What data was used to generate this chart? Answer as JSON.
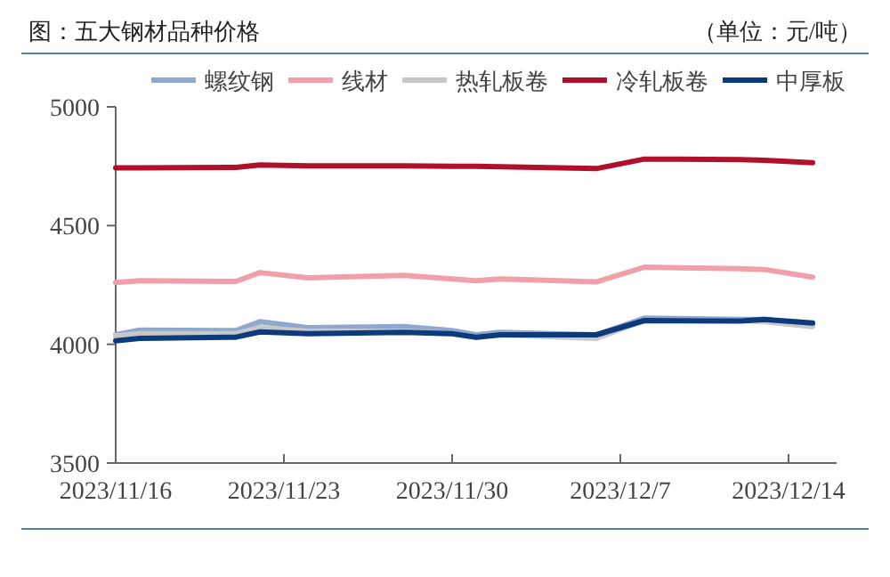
{
  "chart_data": {
    "type": "line",
    "title": "图：五大钢材品种价格",
    "subtitle": "（单位：元/吨）",
    "x": [
      "2023-11-16",
      "2023-11-17",
      "2023-11-21",
      "2023-11-22",
      "2023-11-24",
      "2023-11-28",
      "2023-11-30",
      "2023-12-01",
      "2023-12-02",
      "2023-12-06",
      "2023-12-08",
      "2023-12-12",
      "2023-12-13",
      "2023-12-15"
    ],
    "series": [
      {
        "name": "螺纹钢",
        "color": "#8fa8d0",
        "values": [
          4040,
          4060,
          4058,
          4095,
          4070,
          4075,
          4058,
          4040,
          4050,
          4040,
          4110,
          4105,
          4105,
          4080
        ]
      },
      {
        "name": "线材",
        "color": "#f0a0a8",
        "values": [
          4260,
          4268,
          4265,
          4302,
          4280,
          4290,
          4275,
          4268,
          4275,
          4263,
          4325,
          4318,
          4315,
          4283
        ]
      },
      {
        "name": "热轧板卷",
        "color": "#c8c8c8",
        "values": [
          4035,
          4045,
          4045,
          4070,
          4055,
          4055,
          4045,
          4030,
          4040,
          4025,
          4100,
          4100,
          4095,
          4075
        ]
      },
      {
        "name": "冷轧板卷",
        "color": "#b0102a",
        "values": [
          4743,
          4743,
          4745,
          4755,
          4752,
          4752,
          4750,
          4750,
          4748,
          4740,
          4780,
          4778,
          4775,
          4765
        ]
      },
      {
        "name": "中厚板",
        "color": "#0c3a7c",
        "values": [
          4015,
          4025,
          4030,
          4052,
          4045,
          4050,
          4045,
          4030,
          4040,
          4040,
          4100,
          4098,
          4105,
          4090
        ]
      }
    ],
    "xlim": [
      "2023-11-16",
      "2023-12-16"
    ],
    "xticks": [
      {
        "value": "2023-11-16",
        "label": "2023/11/16"
      },
      {
        "value": "2023-11-23",
        "label": "2023/11/23"
      },
      {
        "value": "2023-11-30",
        "label": "2023/11/30"
      },
      {
        "value": "2023-12-07",
        "label": "2023/12/7"
      },
      {
        "value": "2023-12-14",
        "label": "2023/12/14"
      }
    ],
    "ylim": [
      3500,
      5000
    ],
    "yticks": [
      3500,
      4000,
      4500,
      5000
    ],
    "grid": false,
    "legend": "top",
    "marker": "none",
    "line_style": "solid"
  }
}
